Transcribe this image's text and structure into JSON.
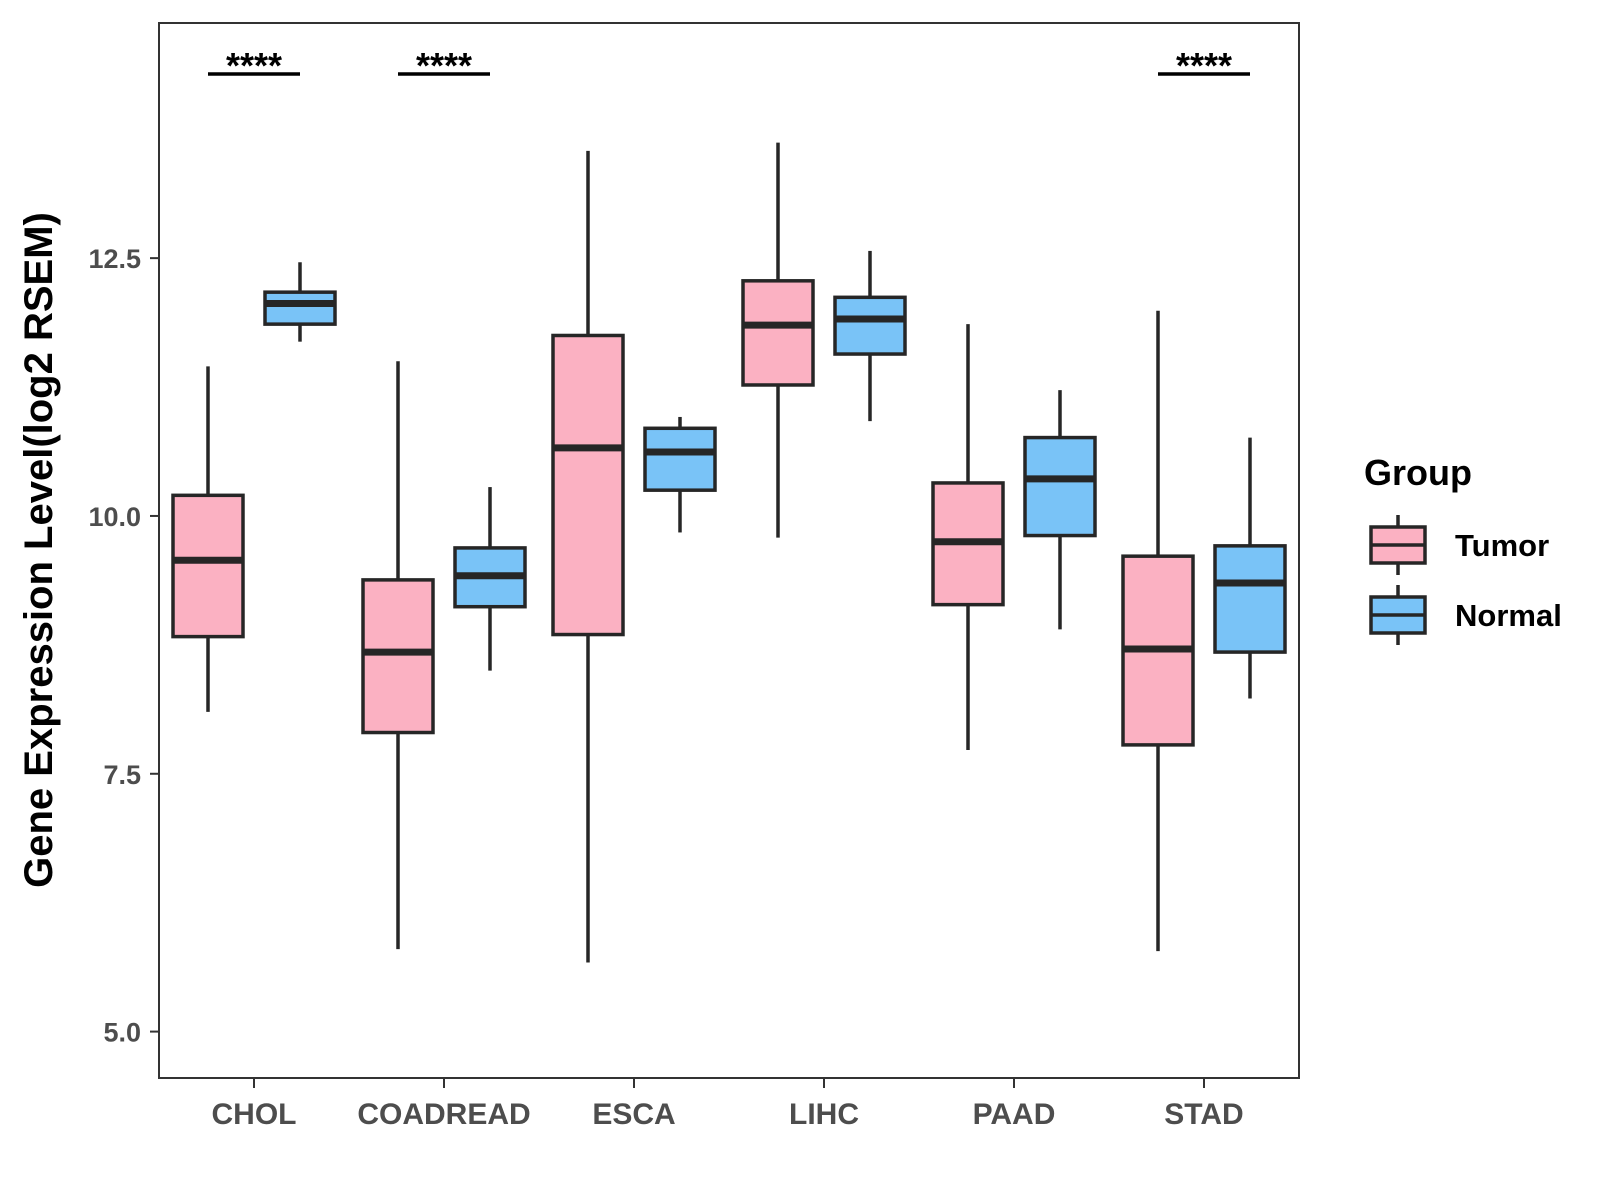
{
  "chart_data": {
    "type": "boxplot",
    "title": "",
    "xlabel": "",
    "ylabel": "Gene Expression Level(log2 RSEM)",
    "ylim": [
      4.55,
      14.78
    ],
    "yticks": [
      5.0,
      7.5,
      10.0,
      12.5
    ],
    "ytick_labels": [
      "5.0",
      "7.5",
      "10.0",
      "12.5"
    ],
    "grid": false,
    "legend_position": "right",
    "legend_title": "Group",
    "categories": [
      "CHOL",
      "COADREAD",
      "ESCA",
      "LIHC",
      "PAAD",
      "STAD"
    ],
    "series": [
      {
        "name": "Tumor",
        "color": "#fbb1c2",
        "boxes": [
          {
            "min": 8.1,
            "q1": 8.83,
            "median": 9.57,
            "q3": 10.2,
            "max": 11.45
          },
          {
            "min": 5.8,
            "q1": 7.9,
            "median": 8.68,
            "q3": 9.38,
            "max": 11.5
          },
          {
            "min": 5.67,
            "q1": 8.85,
            "median": 10.66,
            "q3": 11.75,
            "max": 13.54
          },
          {
            "min": 9.79,
            "q1": 11.27,
            "median": 11.85,
            "q3": 12.28,
            "max": 13.62
          },
          {
            "min": 7.73,
            "q1": 9.14,
            "median": 9.75,
            "q3": 10.32,
            "max": 11.86
          },
          {
            "min": 5.78,
            "q1": 7.78,
            "median": 8.71,
            "q3": 9.61,
            "max": 11.99
          }
        ]
      },
      {
        "name": "Normal",
        "color": "#79c3f7",
        "boxes": [
          {
            "min": 11.69,
            "q1": 11.86,
            "median": 12.06,
            "q3": 12.17,
            "max": 12.46
          },
          {
            "min": 8.5,
            "q1": 9.12,
            "median": 9.42,
            "q3": 9.69,
            "max": 10.28
          },
          {
            "min": 9.84,
            "q1": 10.25,
            "median": 10.62,
            "q3": 10.85,
            "max": 10.96
          },
          {
            "min": 10.92,
            "q1": 11.57,
            "median": 11.91,
            "q3": 12.12,
            "max": 12.57
          },
          {
            "min": 8.9,
            "q1": 9.81,
            "median": 10.36,
            "q3": 10.76,
            "max": 11.22
          },
          {
            "min": 8.23,
            "q1": 8.68,
            "median": 9.35,
            "q3": 9.71,
            "max": 10.76
          }
        ]
      }
    ],
    "annotations": [
      {
        "category": "CHOL",
        "text": "****"
      },
      {
        "category": "COADREAD",
        "text": "****"
      },
      {
        "category": "STAD",
        "text": "****"
      }
    ]
  },
  "colors": {
    "tumor": "#fbb1c2",
    "normal": "#79c3f7",
    "outline": "#262626",
    "panel_border": "#333333",
    "tick_text": "#4d4d4d"
  }
}
